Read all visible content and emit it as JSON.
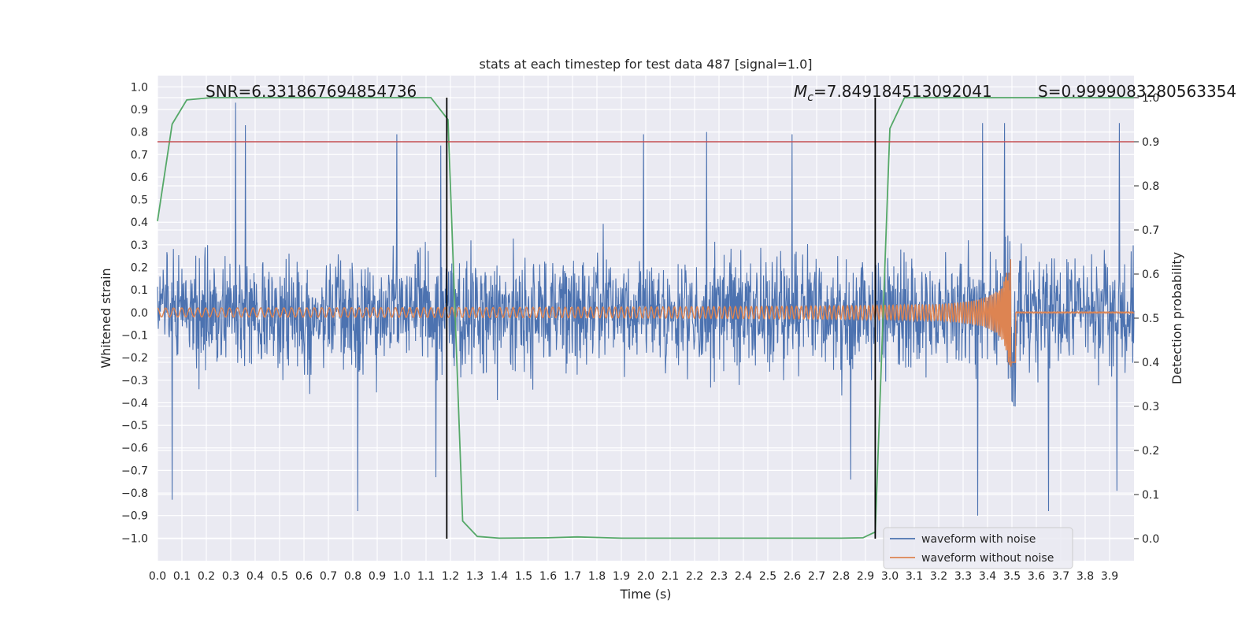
{
  "chart_data": {
    "type": "line",
    "title": "stats at each timestep for test data 487 [signal=1.0]",
    "xlabel": "Time (s)",
    "ylabel": "Whitened strain",
    "y2label": "Detection probability",
    "xlim": [
      0.0,
      4.0
    ],
    "ylim": [
      -1.1,
      1.05
    ],
    "y2lim": [
      -0.05,
      1.05
    ],
    "xticks": [
      0.0,
      0.1,
      0.2,
      0.3,
      0.4,
      0.5,
      0.6,
      0.7,
      0.8,
      0.9,
      1.0,
      1.1,
      1.2,
      1.3,
      1.4,
      1.5,
      1.6,
      1.7,
      1.8,
      1.9,
      2.0,
      2.1,
      2.2,
      2.3,
      2.4,
      2.5,
      2.6,
      2.7,
      2.8,
      2.9,
      3.0,
      3.1,
      3.2,
      3.3,
      3.4,
      3.5,
      3.6,
      3.7,
      3.8,
      3.9
    ],
    "yticks": [
      -1.0,
      -0.9,
      -0.8,
      -0.7,
      -0.6,
      -0.5,
      -0.4,
      -0.3,
      -0.2,
      -0.1,
      0.0,
      0.1,
      0.2,
      0.3,
      0.4,
      0.5,
      0.6,
      0.7,
      0.8,
      0.9,
      1.0
    ],
    "y2ticks": [
      0.0,
      0.1,
      0.2,
      0.3,
      0.4,
      0.5,
      0.6,
      0.7,
      0.8,
      0.9,
      1.0
    ],
    "grid": true,
    "legend": {
      "position": "lower-right",
      "entries": [
        {
          "label": "waveform with noise",
          "color": "#4c72b0"
        },
        {
          "label": "waveform without noise",
          "color": "#dd8452"
        }
      ]
    },
    "annotations": {
      "snr": "SNR=6.331867694854736",
      "mc_symbol": "M",
      "mc_sub": "c",
      "mc_value": "=7.849184513092041",
      "s": "S=0.9999083280563354"
    },
    "threshold": {
      "axis": "y2",
      "value": 0.9,
      "color": "#c44e52"
    },
    "vlines": [
      1.185,
      2.94
    ],
    "series": [
      {
        "name": "waveform with noise",
        "axis": "y",
        "color": "#4c72b0",
        "kind": "noise",
        "x_range": [
          0.0,
          4.0
        ],
        "y_range": [
          -0.9,
          0.93
        ],
        "peaks": [
          {
            "x": 0.06,
            "y": -0.83
          },
          {
            "x": 0.32,
            "y": 0.93
          },
          {
            "x": 0.36,
            "y": 0.83
          },
          {
            "x": 0.82,
            "y": -0.88
          },
          {
            "x": 0.98,
            "y": 0.79
          },
          {
            "x": 1.16,
            "y": 0.74
          },
          {
            "x": 1.14,
            "y": -0.73
          },
          {
            "x": 1.99,
            "y": 0.79
          },
          {
            "x": 2.25,
            "y": 0.8
          },
          {
            "x": 2.6,
            "y": 0.79
          },
          {
            "x": 2.84,
            "y": -0.74
          },
          {
            "x": 3.38,
            "y": 0.84
          },
          {
            "x": 3.47,
            "y": 0.84
          },
          {
            "x": 3.36,
            "y": -0.9
          },
          {
            "x": 3.65,
            "y": -0.88
          },
          {
            "x": 3.94,
            "y": 0.84
          },
          {
            "x": 3.93,
            "y": -0.79
          }
        ]
      },
      {
        "name": "waveform without noise",
        "axis": "y",
        "color": "#dd8452",
        "kind": "chirp",
        "x_range": [
          0.0,
          4.0
        ],
        "amplitude_start": 0.02,
        "amplitude_peak": 0.24,
        "frequency_start_hz": 30,
        "merger_time": 3.5
      },
      {
        "name": "detection probability",
        "axis": "y2",
        "color": "#55a868",
        "x": [
          0.0,
          0.06,
          0.12,
          0.22,
          0.5,
          0.8,
          1.0,
          1.12,
          1.19,
          1.25,
          1.31,
          1.4,
          1.6,
          1.72,
          1.9,
          2.2,
          2.5,
          2.8,
          2.89,
          2.92,
          2.94,
          3.0,
          3.06,
          3.12,
          3.3,
          3.6,
          3.9,
          4.0
        ],
        "y": [
          0.72,
          0.94,
          0.995,
          1.0,
          1.0,
          1.0,
          1.0,
          1.0,
          0.95,
          0.04,
          0.005,
          0.001,
          0.002,
          0.004,
          0.001,
          0.001,
          0.001,
          0.001,
          0.002,
          0.01,
          0.015,
          0.93,
          1.0,
          1.0,
          1.0,
          1.0,
          1.0,
          1.0
        ]
      }
    ]
  }
}
